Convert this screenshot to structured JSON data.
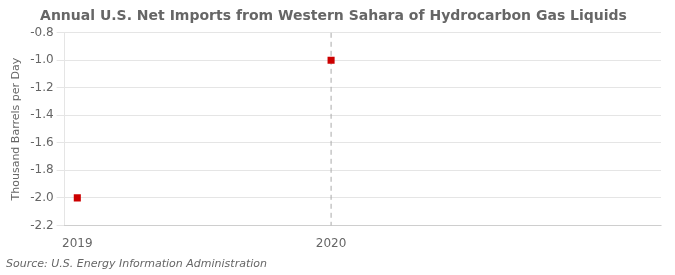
{
  "chart_data": {
    "type": "scatter",
    "title": "Annual U.S. Net Imports from Western Sahara of Hydrocarbon Gas Liquids",
    "ylabel": "Thousand Barrels per Day",
    "source": "Source: U.S. Energy Information Administration",
    "x": [
      2019,
      2020
    ],
    "values": [
      -2.0,
      -1.0
    ],
    "color": "#cc0000",
    "marker": "square",
    "xlim": [
      2018.95,
      2021.3
    ],
    "xticks": [
      2019,
      2020
    ],
    "ylim": [
      -2.2,
      -0.8
    ],
    "yticks": [
      -2.2,
      {
        "value": -2.0,
        "label": "-2.0"
      },
      -1.8,
      -1.6,
      -1.4,
      -1.2,
      {
        "value": -1.0,
        "label": "-1.0"
      },
      -0.8
    ],
    "grid": true,
    "vline": {
      "x": 2020,
      "color": "#aaaaaa",
      "line_style": "dashed"
    }
  }
}
